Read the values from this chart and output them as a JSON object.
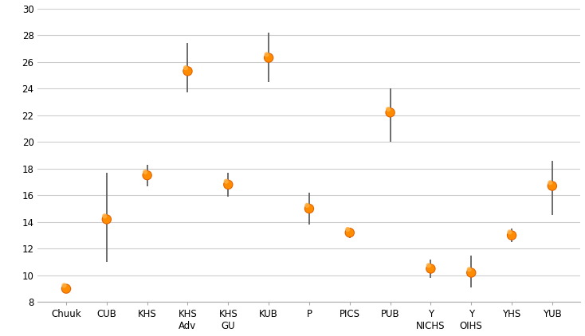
{
  "categories": [
    "Chuuk",
    "CUB",
    "KHS",
    "KHS\nAdv",
    "KHS\nGU",
    "KUB",
    "P",
    "PICS",
    "PUB",
    "Y\nNICHS",
    "Y\nOIHS",
    "YHS",
    "YUB"
  ],
  "values": [
    9.0,
    14.2,
    17.5,
    25.3,
    16.8,
    26.3,
    15.0,
    13.2,
    22.2,
    10.5,
    10.2,
    13.0,
    16.7
  ],
  "yerr_low": [
    0.2,
    3.2,
    0.8,
    1.6,
    0.9,
    1.8,
    1.2,
    0.4,
    2.2,
    0.7,
    1.1,
    0.5,
    2.2
  ],
  "yerr_high": [
    0.2,
    3.5,
    0.8,
    2.1,
    0.9,
    1.9,
    1.2,
    0.4,
    1.8,
    0.7,
    1.3,
    0.5,
    1.9
  ],
  "dot_outer_color": "#E06000",
  "dot_mid_color": "#FF8C00",
  "dot_inner_color": "#FFB040",
  "errorbar_color": "#606060",
  "background_color": "#ffffff",
  "grid_color": "#cccccc",
  "ylim": [
    8,
    30
  ],
  "yticks": [
    8,
    10,
    12,
    14,
    16,
    18,
    20,
    22,
    24,
    26,
    28,
    30
  ],
  "dot_size_outer": 80,
  "dot_size_mid": 55,
  "dot_size_inner": 20,
  "errorbar_lw": 1.3,
  "tick_fontsize": 8.5,
  "xlabel_fontsize": 8.5
}
